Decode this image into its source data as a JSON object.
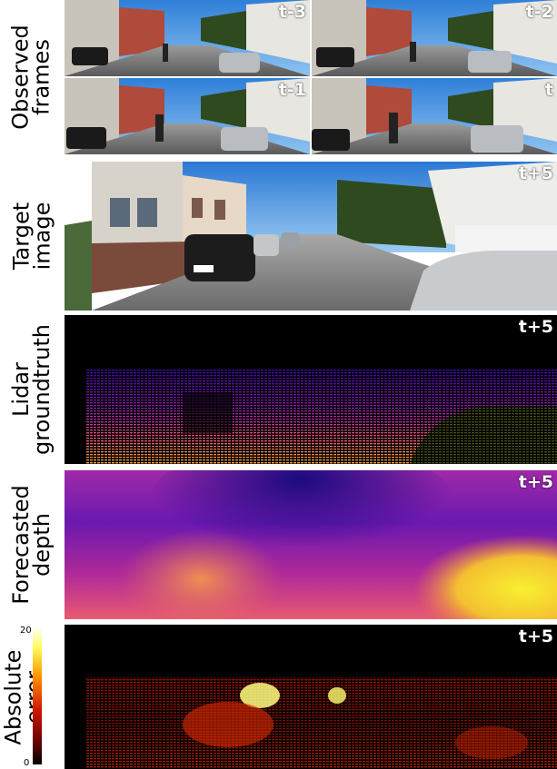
{
  "rows": [
    {
      "id": "observed",
      "label_lines": [
        "Observed",
        "frames"
      ]
    },
    {
      "id": "target",
      "label_lines": [
        "Target",
        "image"
      ]
    },
    {
      "id": "lidar",
      "label_lines": [
        "Lidar",
        "groundtruth"
      ]
    },
    {
      "id": "forecast",
      "label_lines": [
        "Forecasted",
        "depth"
      ]
    },
    {
      "id": "error",
      "label_lines": [
        "Absolute",
        "error"
      ]
    }
  ],
  "observed_tags": [
    "t-3",
    "t-2",
    "t-1",
    "t"
  ],
  "target_tag": "t+5",
  "lidar_tag": "t+5",
  "forecast_tag": "t+5",
  "error_tag": "t+5",
  "colorbar": {
    "max": "20",
    "min": "0"
  },
  "colors": {
    "sky": "#3a8ae0",
    "road": "#8a8a8a",
    "house": "#d8d4cc",
    "magma_low": "#1a0a60",
    "magma_mid": "#9a1fa0",
    "magma_high": "#f7e52a",
    "error_dark": "#3a0000",
    "error_red": "#c01000",
    "error_yellow": "#ffff60"
  }
}
